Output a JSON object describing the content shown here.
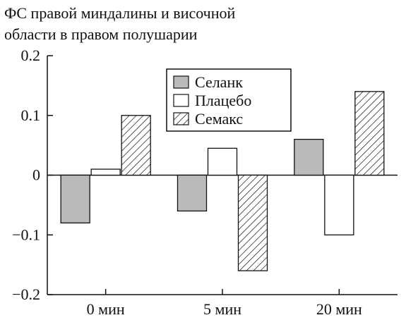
{
  "chart_data": {
    "type": "bar",
    "title_lines": [
      "ФС правой миндалины и височной",
      "области в правом полушарии"
    ],
    "categories": [
      "0 мин",
      "5 мин",
      "20 мин"
    ],
    "series": [
      {
        "name": "Селанк",
        "values": [
          -0.08,
          -0.06,
          0.06
        ],
        "fill": "#bbbbbb",
        "pattern": "solid"
      },
      {
        "name": "Плацебо",
        "values": [
          0.01,
          0.045,
          -0.1
        ],
        "fill": "#ffffff",
        "pattern": "none"
      },
      {
        "name": "Семакс",
        "values": [
          0.1,
          -0.16,
          0.14
        ],
        "fill": "#ffffff",
        "pattern": "hatch"
      }
    ],
    "yticks": [
      "0.2",
      "0.1",
      "0",
      "−0.1",
      "−0.2"
    ],
    "ytick_values": [
      0.2,
      0.1,
      0,
      -0.1,
      -0.2
    ],
    "ylim": [
      -0.2,
      0.2
    ],
    "legend_position": "top-center",
    "grid": false
  }
}
